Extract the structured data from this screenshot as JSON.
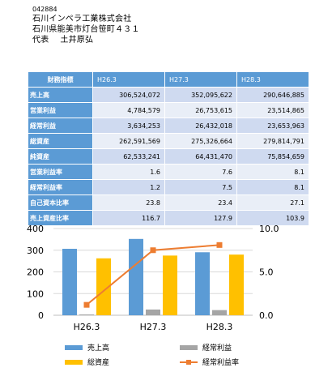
{
  "company": {
    "code": "042884",
    "name": "石川インペラ工業株式会社",
    "address": "石川県能美市灯台笹町４３１",
    "rep_title": "代表",
    "rep_name": "土井原弘"
  },
  "table": {
    "header": {
      "label": "財務指標",
      "years": [
        "H26.3",
        "H27.3",
        "H28.3"
      ]
    },
    "rows": [
      {
        "label": "売上高",
        "values": [
          "306,524,072",
          "352,095,622",
          "290,646,885"
        ]
      },
      {
        "label": "営業利益",
        "values": [
          "4,784,579",
          "26,753,615",
          "23,514,865"
        ]
      },
      {
        "label": "経常利益",
        "values": [
          "3,634,253",
          "26,432,018",
          "23,653,963"
        ]
      },
      {
        "label": "総資産",
        "values": [
          "262,591,569",
          "275,326,664",
          "279,814,791"
        ]
      },
      {
        "label": "純資産",
        "values": [
          "62,533,241",
          "64,431,470",
          "75,854,659"
        ]
      },
      {
        "label": "営業利益率",
        "values": [
          "1.6",
          "7.6",
          "8.1"
        ]
      },
      {
        "label": "経常利益率",
        "values": [
          "1.2",
          "7.5",
          "8.1"
        ]
      },
      {
        "label": "自己資本比率",
        "values": [
          "23.8",
          "23.4",
          "27.1"
        ]
      },
      {
        "label": "売上資産比率",
        "values": [
          "116.7",
          "127.9",
          "103.9"
        ]
      }
    ]
  },
  "chart_data": {
    "type": "bar",
    "categories": [
      "H26.3",
      "H27.3",
      "H28.3"
    ],
    "series": [
      {
        "name": "売上高",
        "kind": "bar",
        "axis": "left",
        "color": "#5b9bd5",
        "values": [
          306.5,
          352.1,
          290.6
        ]
      },
      {
        "name": "経常利益",
        "kind": "bar",
        "axis": "left",
        "color": "#a5a5a5",
        "values": [
          3.6,
          26.4,
          23.7
        ]
      },
      {
        "name": "総資産",
        "kind": "bar",
        "axis": "left",
        "color": "#ffc000",
        "values": [
          262.6,
          275.3,
          279.8
        ]
      },
      {
        "name": "経常利益率",
        "kind": "line",
        "axis": "right",
        "color": "#ed7d31",
        "values": [
          1.2,
          7.5,
          8.1
        ]
      }
    ],
    "left_axis": {
      "ylim": [
        0,
        400
      ],
      "ticks": [
        "0",
        "100",
        "200",
        "300",
        "400"
      ]
    },
    "right_axis": {
      "ylim": [
        0,
        10
      ],
      "ticks": [
        "0.0",
        "5.0",
        "10.0"
      ]
    },
    "legend": {
      "placement": "bottom"
    }
  }
}
